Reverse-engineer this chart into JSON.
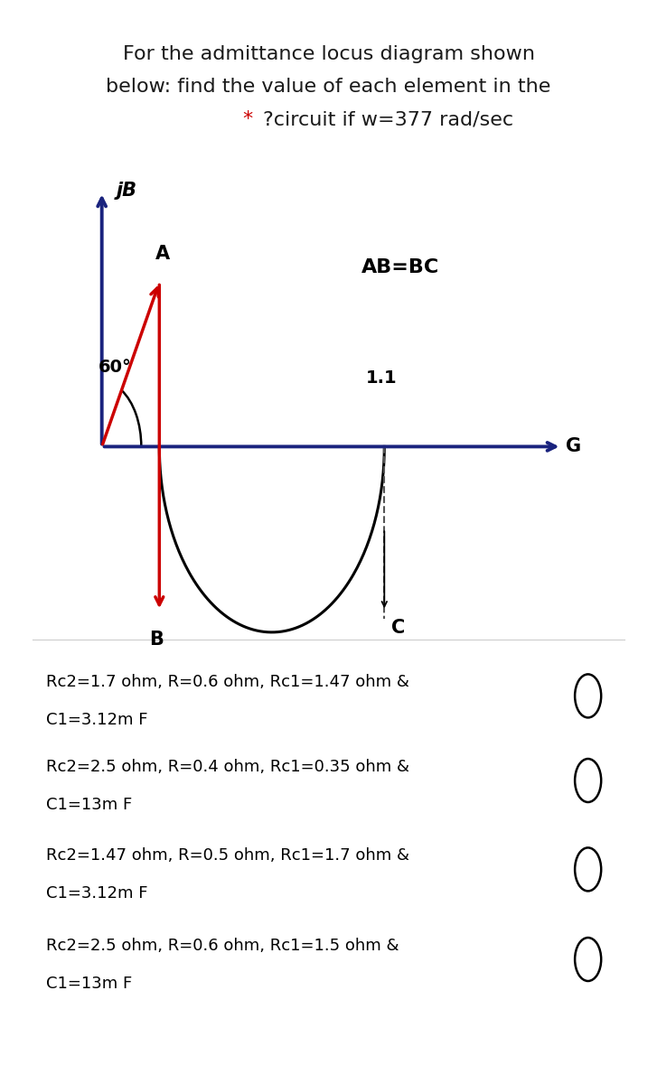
{
  "title_line1": "For the admittance locus diagram shown",
  "title_line2": "below: find the value of each element in the",
  "title_star_color": "#cc0000",
  "title_line3_rest": "?circuit if w=377 rad/sec",
  "bg_color": "#ffffff",
  "diagram": {
    "jB_label": "jB",
    "G_label": "G",
    "A_label": "A",
    "B_label": "B",
    "C_label": "C",
    "AB_BC_label": "AB=BC",
    "angle_label": "60°",
    "value_label": "1.1",
    "axis_color": "#1a237e",
    "arrow_color": "#cc0000",
    "arc_color": "#000000"
  },
  "options": [
    {
      "line1": "Rc2=1.7 ohm, R=0.6 ohm, Rc1=1.47 ohm &",
      "line2": "C1=3.12m F"
    },
    {
      "line1": "Rc2=2.5 ohm, R=0.4 ohm, Rc1=0.35 ohm &",
      "line2": "C1=13m F"
    },
    {
      "line1": "Rc2=1.47 ohm, R=0.5 ohm, Rc1=1.7 ohm &",
      "line2": "C1=3.12m F"
    },
    {
      "line1": "Rc2=2.5 ohm, R=0.6 ohm, Rc1=1.5 ohm &",
      "line2": "C1=13m F"
    }
  ]
}
